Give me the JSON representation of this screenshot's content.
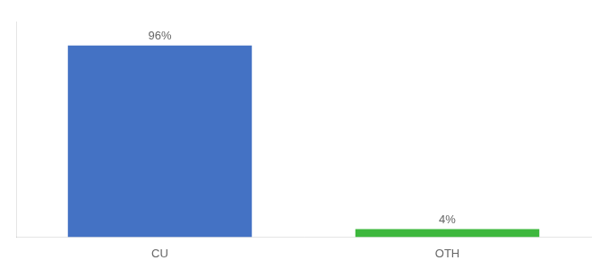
{
  "chart_data": {
    "type": "bar",
    "categories": [
      "CU",
      "OTH"
    ],
    "values": [
      96,
      4
    ],
    "value_labels": [
      "96%",
      "4%"
    ],
    "colors": [
      "#4472c4",
      "#3db83d"
    ],
    "ylim": [
      0,
      108
    ],
    "yticks": [],
    "grid": false,
    "data_labels": true,
    "tick_labels": "x"
  }
}
